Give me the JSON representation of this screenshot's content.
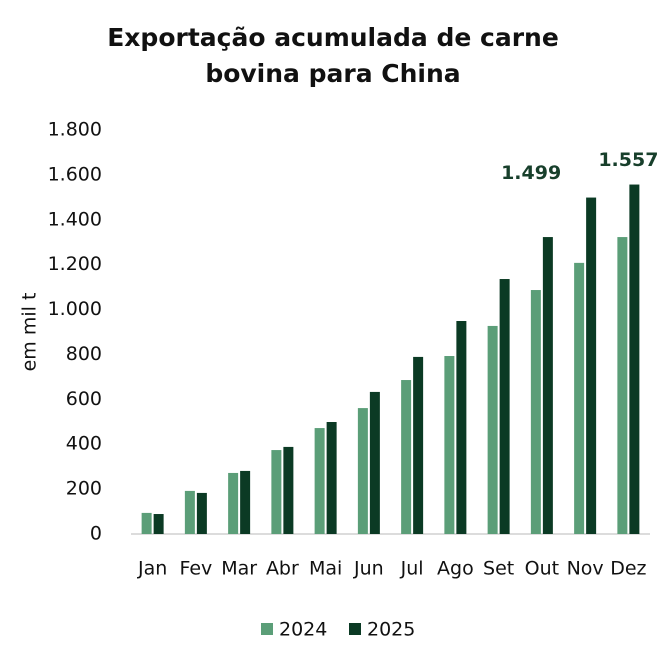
{
  "chart_data": {
    "type": "bar",
    "title": [
      "Exportação acumulada de carne",
      "bovina para China"
    ],
    "ylabel": "em mil t",
    "categories": [
      "Jan",
      "Fev",
      "Mar",
      "Abr",
      "Mai",
      "Jun",
      "Jul",
      "Ago",
      "Set",
      "Out",
      "Nov",
      "Dez"
    ],
    "series": [
      {
        "name": "2024",
        "color": "#5b9e78",
        "values": [
          94,
          192,
          272,
          374,
          472,
          561,
          686,
          793,
          927,
          1087,
          1208,
          1323
        ]
      },
      {
        "name": "2025",
        "color": "#0b3a24",
        "values": [
          89,
          183,
          281,
          388,
          499,
          633,
          789,
          949,
          1136,
          1323,
          1499,
          1557
        ],
        "value_labels": [
          null,
          null,
          null,
          null,
          null,
          null,
          null,
          null,
          null,
          null,
          "1.499",
          "1.557"
        ]
      }
    ],
    "ylim": [
      0,
      1800
    ],
    "yticks": [
      0,
      200,
      400,
      600,
      800,
      {
        "value": 1000,
        "label": "1.000"
      },
      {
        "value": 1200,
        "label": "1.200"
      },
      {
        "value": 1400,
        "label": "1.400"
      },
      {
        "value": 1600,
        "label": "1.600"
      },
      {
        "value": 1800,
        "label": "1.800"
      }
    ],
    "grid": false,
    "legend": "bottom"
  }
}
